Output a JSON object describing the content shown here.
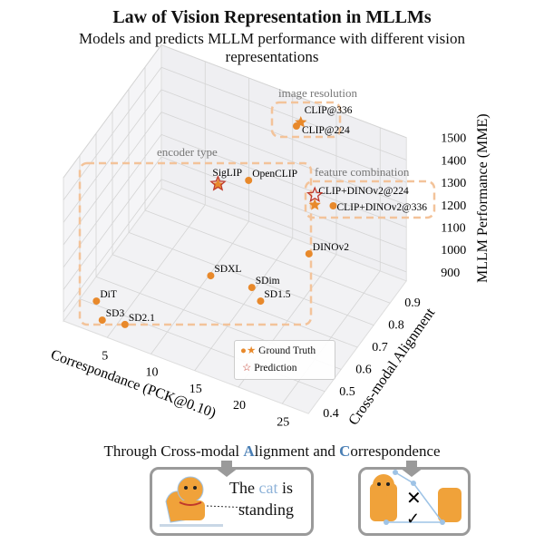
{
  "header": {
    "title": "Law of Vision Representation in MLLMs",
    "subtitle": "Models and predicts MLLM performance with different vision representations"
  },
  "chart_data": {
    "type": "scatter3d",
    "xlabel": "Correspondance (PCK@0.10)",
    "ylabel": "Cross-modal Alignment",
    "zlabel": "MLLM Performance (MME)",
    "xlim": [
      0,
      28
    ],
    "ylim": [
      0.4,
      1.0
    ],
    "zlim": [
      860,
      1550
    ],
    "xticks": [
      "5",
      "10",
      "15",
      "20",
      "25"
    ],
    "yticks": [
      "0.4",
      "0.5",
      "0.6",
      "0.7",
      "0.8",
      "0.9"
    ],
    "zticks": [
      "900",
      "1000",
      "1100",
      "1200",
      "1300",
      "1400",
      "1500"
    ],
    "grid": true,
    "legend": {
      "position": "bottom-center",
      "entries": [
        "Ground Truth",
        "Prediction"
      ]
    },
    "colors": {
      "ground_truth": "#e8892b",
      "prediction": "#c0392b",
      "group_box": "#f3c39a"
    },
    "points": [
      {
        "label": "CLIP@336",
        "x": 17.8,
        "y": 0.9,
        "z": 1516,
        "marker": "star",
        "kind": "ground_truth"
      },
      {
        "label": "CLIP@224",
        "x": 17.3,
        "y": 0.9,
        "z": 1492,
        "marker": "circle",
        "kind": "ground_truth"
      },
      {
        "label": "SigLIP",
        "x": 10.2,
        "y": 0.8,
        "z": 1223,
        "marker": "star",
        "kind": "ground_truth"
      },
      {
        "label": "",
        "x": 10.2,
        "y": 0.8,
        "z": 1228,
        "marker": "star",
        "kind": "prediction"
      },
      {
        "label": "OpenCLIP",
        "x": 13.7,
        "y": 0.8,
        "z": 1295,
        "marker": "circle",
        "kind": "ground_truth"
      },
      {
        "label": "CLIP+DINOv2@224",
        "x": 19.4,
        "y": 0.9,
        "z": 1171,
        "marker": "star",
        "kind": "ground_truth"
      },
      {
        "label": "",
        "x": 19.4,
        "y": 0.9,
        "z": 1215,
        "marker": "star",
        "kind": "prediction"
      },
      {
        "label": "CLIP+DINOv2@336",
        "x": 21.5,
        "y": 0.9,
        "z": 1198,
        "marker": "circle",
        "kind": "ground_truth"
      },
      {
        "label": "DINOv2",
        "x": 20.6,
        "y": 0.8,
        "z": 1069,
        "marker": "circle",
        "kind": "ground_truth"
      },
      {
        "label": "SDXL",
        "x": 13.1,
        "y": 0.6,
        "z": 1058,
        "marker": "circle",
        "kind": "ground_truth"
      },
      {
        "label": "SDim",
        "x": 17.8,
        "y": 0.6,
        "z": 1075,
        "marker": "circle",
        "kind": "ground_truth"
      },
      {
        "label": "SD1.5",
        "x": 18.8,
        "y": 0.6,
        "z": 1029,
        "marker": "circle",
        "kind": "ground_truth"
      },
      {
        "label": "DiT",
        "x": 1.9,
        "y": 0.5,
        "z": 878,
        "marker": "circle",
        "kind": "ground_truth"
      },
      {
        "label": "SD3",
        "x": 3.5,
        "y": 0.45,
        "z": 866,
        "marker": "circle",
        "kind": "ground_truth"
      },
      {
        "label": "SD2.1",
        "x": 6.1,
        "y": 0.45,
        "z": 885,
        "marker": "circle",
        "kind": "ground_truth"
      }
    ],
    "annotations": [
      "image resolution",
      "encoder type",
      "feature combination"
    ]
  },
  "bottom": {
    "prefix": "Through Cross-modal ",
    "a": "A",
    "a_rest": "lignment and ",
    "c": "C",
    "c_rest": "orrespondence",
    "caption_the": "The",
    "caption_cat": "cat",
    "caption_is": "is",
    "caption_standing": "standing"
  }
}
